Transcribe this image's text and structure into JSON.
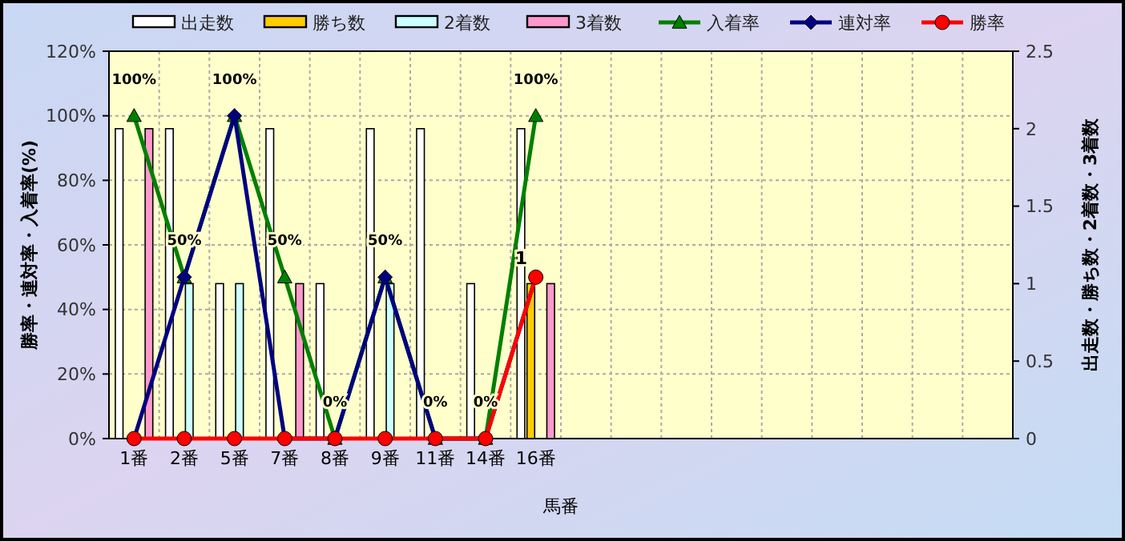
{
  "chart_data": {
    "type": "bar",
    "xlabel": "馬番",
    "ylabel": "勝率・連対率・入着率(%)",
    "y2label": "出走数・勝ち数・2着数・3着数",
    "categories": [
      "1番",
      "2番",
      "5番",
      "7番",
      "8番",
      "9番",
      "11番",
      "14番",
      "16番",
      null,
      null,
      null,
      null,
      null,
      null,
      null,
      null,
      null
    ],
    "series": [
      {
        "name": "出走数",
        "axis": "y2",
        "color": "#ffffff",
        "values": [
          2,
          2,
          1,
          2,
          1,
          2,
          2,
          1,
          2,
          null,
          null,
          null,
          null,
          null,
          null,
          null,
          null,
          null
        ]
      },
      {
        "name": "勝ち数",
        "axis": "y2",
        "color": "#ffcc00",
        "values": [
          0,
          0,
          0,
          0,
          0,
          0,
          0,
          0,
          1,
          null,
          null,
          null,
          null,
          null,
          null,
          null,
          null,
          null
        ],
        "value_labels": [
          null,
          null,
          null,
          null,
          null,
          null,
          null,
          null,
          "1",
          null,
          null,
          null,
          null,
          null,
          null,
          null,
          null,
          null
        ]
      },
      {
        "name": "2着数",
        "axis": "y2",
        "color": "#ccffff",
        "values": [
          0,
          1,
          1,
          0,
          0,
          1,
          0,
          0,
          0,
          null,
          null,
          null,
          null,
          null,
          null,
          null,
          null,
          null
        ]
      },
      {
        "name": "3着数",
        "axis": "y2",
        "color": "#ff99cc",
        "values": [
          2,
          0,
          0,
          1,
          0,
          0,
          0,
          0,
          1,
          null,
          null,
          null,
          null,
          null,
          null,
          null,
          null,
          null
        ]
      },
      {
        "name": "入着率",
        "type": "line",
        "color": "#008000",
        "marker": "triangle",
        "values": [
          100,
          50,
          100,
          50,
          0,
          50,
          0,
          0,
          100,
          null,
          null,
          null,
          null,
          null,
          null,
          null,
          null,
          null
        ],
        "value_labels": [
          "100%",
          "50%",
          "100%",
          "50%",
          "0%",
          "50%",
          "0%",
          "0%",
          "100%",
          null,
          null,
          null,
          null,
          null,
          null,
          null,
          null,
          null
        ]
      },
      {
        "name": "連対率",
        "type": "line",
        "color": "#000080",
        "marker": "diamond",
        "values": [
          0,
          50,
          100,
          0,
          0,
          50,
          0,
          0,
          50,
          null,
          null,
          null,
          null,
          null,
          null,
          null,
          null,
          null
        ]
      },
      {
        "name": "勝率",
        "type": "line",
        "color": "#ff0000",
        "marker": "circle",
        "values": [
          0,
          0,
          0,
          0,
          0,
          0,
          0,
          0,
          50,
          null,
          null,
          null,
          null,
          null,
          null,
          null,
          null,
          null
        ]
      }
    ],
    "ylim": [
      0,
      120
    ],
    "yticks": [
      {
        "value": 0,
        "label": "0%"
      },
      {
        "value": 20,
        "label": "20%"
      },
      {
        "value": 40,
        "label": "40%"
      },
      {
        "value": 60,
        "label": "60%"
      },
      {
        "value": 80,
        "label": "80%"
      },
      {
        "value": 100,
        "label": "100%"
      },
      {
        "value": 120,
        "label": "120%"
      }
    ],
    "y2lim": [
      0,
      2.5
    ],
    "y2ticks": [
      0,
      0.5,
      1,
      1.5,
      2,
      2.5
    ],
    "grid": true,
    "legend": "top",
    "line_style": "solid"
  }
}
